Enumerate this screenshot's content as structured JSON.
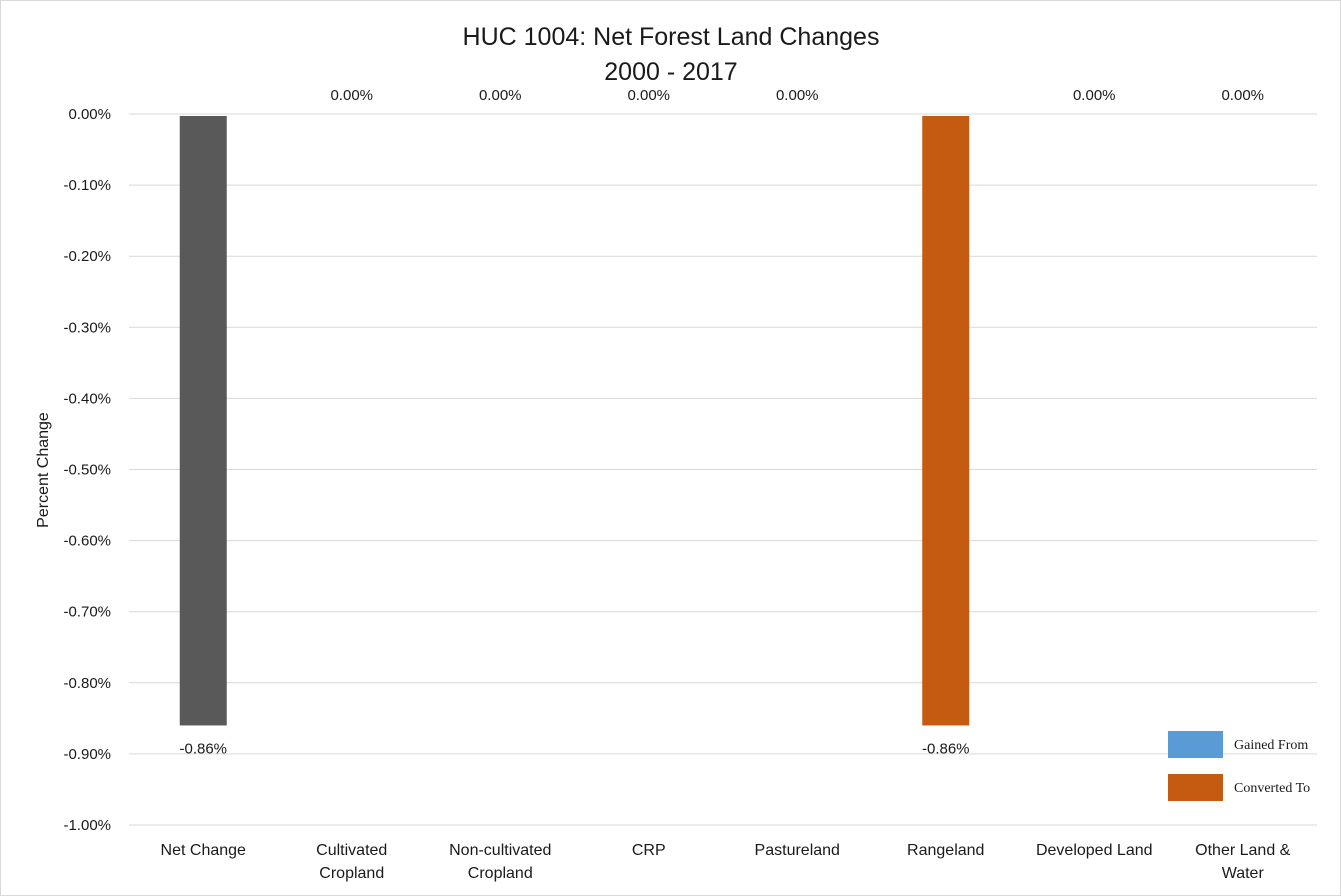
{
  "chart_data": {
    "type": "bar",
    "title": [
      "HUC 1004: Net Forest Land Changes",
      "2000 - 2017"
    ],
    "ylabel": "Percent Change",
    "xlabel": "",
    "categories": [
      [
        "Net Change"
      ],
      [
        "Cultivated",
        "Cropland"
      ],
      [
        "Non-cultivated",
        "Cropland"
      ],
      [
        "CRP"
      ],
      [
        "Pastureland"
      ],
      [
        "Rangeland"
      ],
      [
        "Developed Land"
      ],
      [
        "Other Land &",
        "Water"
      ]
    ],
    "values": [
      -0.86,
      0.0,
      0.0,
      0.0,
      0.0,
      -0.86,
      0.0,
      0.0
    ],
    "data_labels": [
      "-0.86%",
      "0.00%",
      "0.00%",
      "0.00%",
      "0.00%",
      "-0.86%",
      "0.00%",
      "0.00%"
    ],
    "bar_colors": [
      "#595959",
      "#c55a11",
      "#c55a11",
      "#c55a11",
      "#c55a11",
      "#c55a11",
      "#c55a11",
      "#c55a11"
    ],
    "ylim": [
      -1.0,
      0.0
    ],
    "ytick_step": 0.1,
    "ytick_labels": [
      "0.00%",
      "-0.10%",
      "-0.20%",
      "-0.30%",
      "-0.40%",
      "-0.50%",
      "-0.60%",
      "-0.70%",
      "-0.80%",
      "-0.90%",
      "-1.00%"
    ],
    "grid": true,
    "legend": {
      "position": "bottom-right",
      "entries": [
        {
          "name": "Gained From",
          "color": "#5b9bd5"
        },
        {
          "name": "Converted To",
          "color": "#c55a11"
        }
      ]
    }
  }
}
